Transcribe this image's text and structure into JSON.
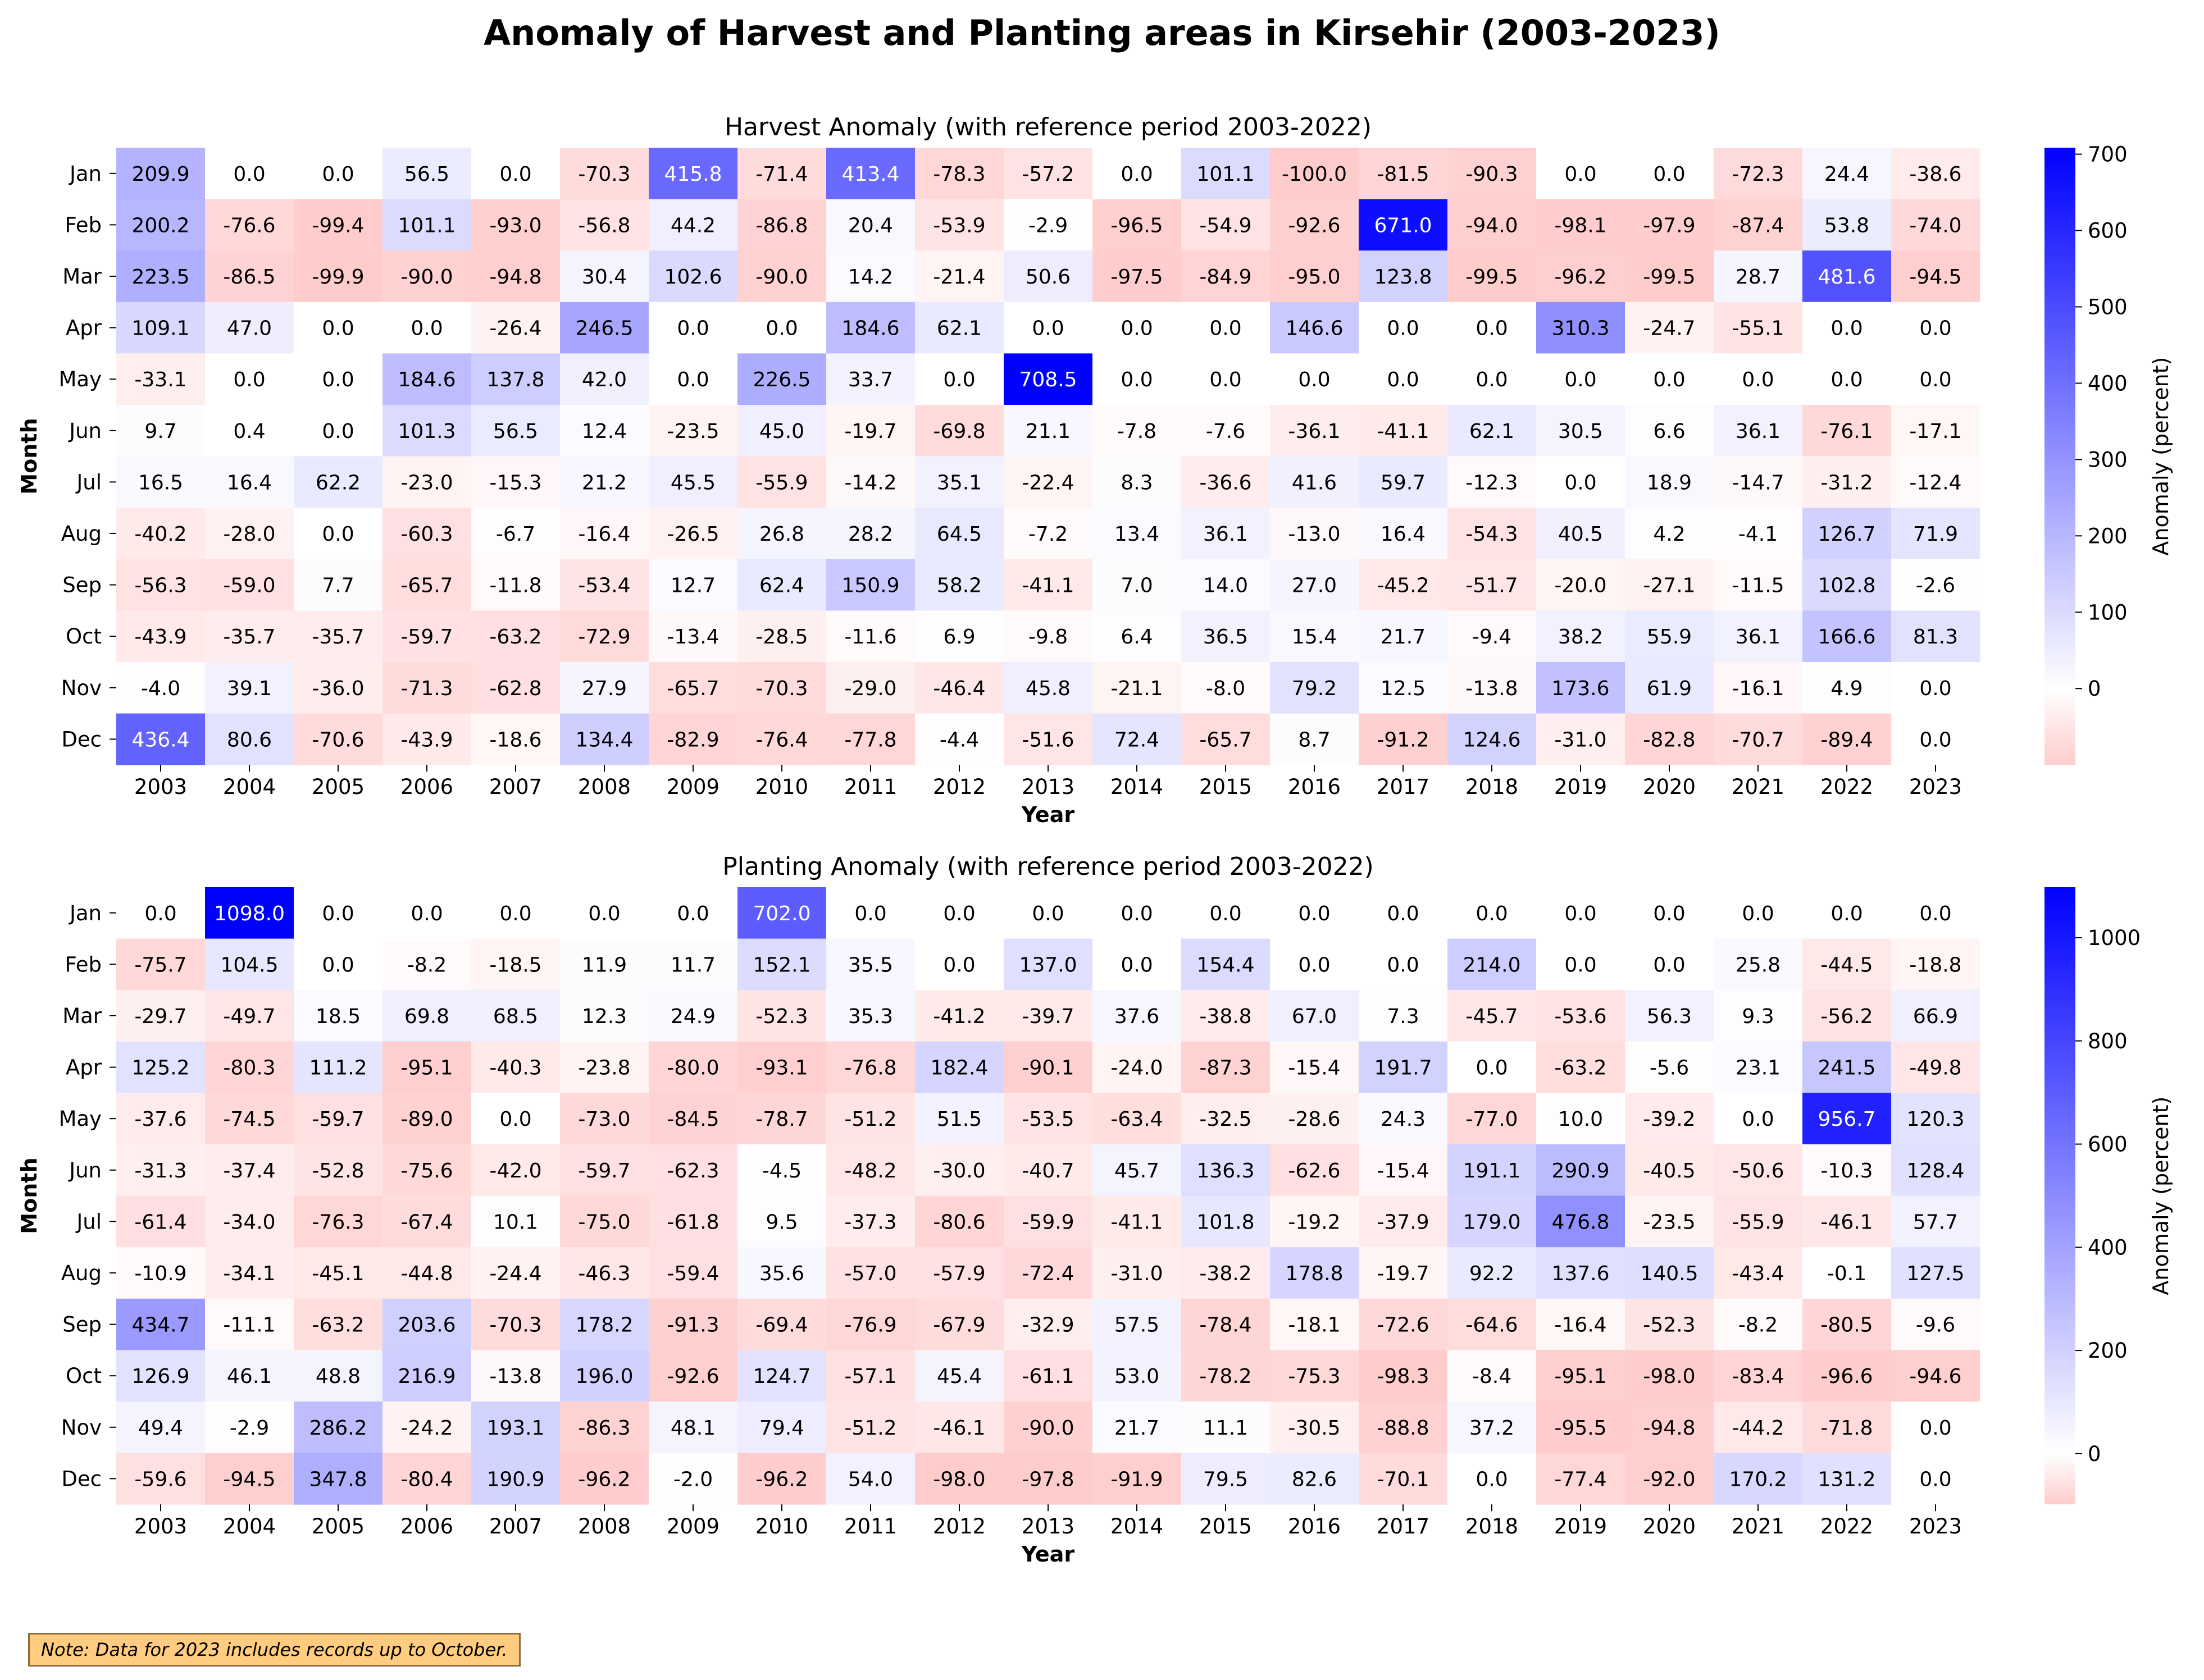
{
  "title": "Anomaly of Harvest and Planting areas in Kirsehir (2003-2023)",
  "note": "Note: Data for 2023 includes records up to October.",
  "colors": {
    "negative": "#ffcccc",
    "zero": "#ffffff",
    "positive": "#0000ff"
  },
  "chart_data": [
    {
      "type": "heatmap",
      "title": "Harvest Anomaly (with reference period 2003-2022)",
      "xlabel": "Year",
      "ylabel": "Month",
      "colorbar_label": "Anomaly (percent)",
      "colorbar_ticks": [
        0,
        100,
        200,
        300,
        400,
        500,
        600,
        700
      ],
      "vmin": -100,
      "vmax": 708.5,
      "x": [
        "2003",
        "2004",
        "2005",
        "2006",
        "2007",
        "2008",
        "2009",
        "2010",
        "2011",
        "2012",
        "2013",
        "2014",
        "2015",
        "2016",
        "2017",
        "2018",
        "2019",
        "2020",
        "2021",
        "2022",
        "2023"
      ],
      "y": [
        "Jan",
        "Feb",
        "Mar",
        "Apr",
        "May",
        "Jun",
        "Jul",
        "Aug",
        "Sep",
        "Oct",
        "Nov",
        "Dec"
      ],
      "values": [
        [
          209.9,
          0.0,
          0.0,
          56.5,
          0.0,
          -70.3,
          415.8,
          -71.4,
          413.4,
          -78.3,
          -57.2,
          0.0,
          101.1,
          -100.0,
          -81.5,
          -90.3,
          0.0,
          0.0,
          -72.3,
          24.4,
          -38.6
        ],
        [
          200.2,
          -76.6,
          -99.4,
          101.1,
          -93.0,
          -56.8,
          44.2,
          -86.8,
          20.4,
          -53.9,
          -2.9,
          -96.5,
          -54.9,
          -92.6,
          671.0,
          -94.0,
          -98.1,
          -97.9,
          -87.4,
          53.8,
          -74.0
        ],
        [
          223.5,
          -86.5,
          -99.9,
          -90.0,
          -94.8,
          30.4,
          102.6,
          -90.0,
          14.2,
          -21.4,
          50.6,
          -97.5,
          -84.9,
          -95.0,
          123.8,
          -99.5,
          -96.2,
          -99.5,
          28.7,
          481.6,
          -94.5
        ],
        [
          109.1,
          47.0,
          0.0,
          0.0,
          -26.4,
          246.5,
          0.0,
          0.0,
          184.6,
          62.1,
          0.0,
          0.0,
          0.0,
          146.6,
          0.0,
          0.0,
          310.3,
          -24.7,
          -55.1,
          0.0,
          0.0
        ],
        [
          -33.1,
          0.0,
          0.0,
          184.6,
          137.8,
          42.0,
          0.0,
          226.5,
          33.7,
          0.0,
          708.5,
          0.0,
          0.0,
          0.0,
          0.0,
          0.0,
          0.0,
          0.0,
          0.0,
          0.0,
          0.0
        ],
        [
          9.7,
          0.4,
          0.0,
          101.3,
          56.5,
          12.4,
          -23.5,
          45.0,
          -19.7,
          -69.8,
          21.1,
          -7.8,
          -7.6,
          -36.1,
          -41.1,
          62.1,
          30.5,
          6.6,
          36.1,
          -76.1,
          -17.1
        ],
        [
          16.5,
          16.4,
          62.2,
          -23.0,
          -15.3,
          21.2,
          45.5,
          -55.9,
          -14.2,
          35.1,
          -22.4,
          8.3,
          -36.6,
          41.6,
          59.7,
          -12.3,
          0.0,
          18.9,
          -14.7,
          -31.2,
          -12.4
        ],
        [
          -40.2,
          -28.0,
          0.0,
          -60.3,
          -6.7,
          -16.4,
          -26.5,
          26.8,
          28.2,
          64.5,
          -7.2,
          13.4,
          36.1,
          -13.0,
          16.4,
          -54.3,
          40.5,
          4.2,
          -4.1,
          126.7,
          71.9
        ],
        [
          -56.3,
          -59.0,
          7.7,
          -65.7,
          -11.8,
          -53.4,
          12.7,
          62.4,
          150.9,
          58.2,
          -41.1,
          7.0,
          14.0,
          27.0,
          -45.2,
          -51.7,
          -20.0,
          -27.1,
          -11.5,
          102.8,
          -2.6
        ],
        [
          -43.9,
          -35.7,
          -35.7,
          -59.7,
          -63.2,
          -72.9,
          -13.4,
          -28.5,
          -11.6,
          6.9,
          -9.8,
          6.4,
          36.5,
          15.4,
          21.7,
          -9.4,
          38.2,
          55.9,
          36.1,
          166.6,
          81.3
        ],
        [
          -4.0,
          39.1,
          -36.0,
          -71.3,
          -62.8,
          27.9,
          -65.7,
          -70.3,
          -29.0,
          -46.4,
          45.8,
          -21.1,
          -8.0,
          79.2,
          12.5,
          -13.8,
          173.6,
          61.9,
          -16.1,
          4.9,
          0.0
        ],
        [
          436.4,
          80.6,
          -70.6,
          -43.9,
          -18.6,
          134.4,
          -82.9,
          -76.4,
          -77.8,
          -4.4,
          -51.6,
          72.4,
          -65.7,
          8.7,
          -91.2,
          124.6,
          -31.0,
          -82.8,
          -70.7,
          -89.4,
          0.0
        ]
      ]
    },
    {
      "type": "heatmap",
      "title": "Planting Anomaly (with reference period 2003-2022)",
      "xlabel": "Year",
      "ylabel": "Month",
      "colorbar_label": "Anomaly (percent)",
      "colorbar_ticks": [
        0,
        200,
        400,
        600,
        800,
        1000
      ],
      "vmin": -98.3,
      "vmax": 1098.0,
      "x": [
        "2003",
        "2004",
        "2005",
        "2006",
        "2007",
        "2008",
        "2009",
        "2010",
        "2011",
        "2012",
        "2013",
        "2014",
        "2015",
        "2016",
        "2017",
        "2018",
        "2019",
        "2020",
        "2021",
        "2022",
        "2023"
      ],
      "y": [
        "Jan",
        "Feb",
        "Mar",
        "Apr",
        "May",
        "Jun",
        "Jul",
        "Aug",
        "Sep",
        "Oct",
        "Nov",
        "Dec"
      ],
      "values": [
        [
          0.0,
          1098.0,
          0.0,
          0.0,
          0.0,
          0.0,
          0.0,
          702.0,
          0.0,
          0.0,
          0.0,
          0.0,
          0.0,
          0.0,
          0.0,
          0.0,
          0.0,
          0.0,
          0.0,
          0.0,
          0.0
        ],
        [
          -75.7,
          104.5,
          0.0,
          -8.2,
          -18.5,
          11.9,
          11.7,
          152.1,
          35.5,
          0.0,
          137.0,
          0.0,
          154.4,
          0.0,
          0.0,
          214.0,
          0.0,
          0.0,
          25.8,
          -44.5,
          -18.8
        ],
        [
          -29.7,
          -49.7,
          18.5,
          69.8,
          68.5,
          12.3,
          24.9,
          -52.3,
          35.3,
          -41.2,
          -39.7,
          37.6,
          -38.8,
          67.0,
          7.3,
          -45.7,
          -53.6,
          56.3,
          9.3,
          -56.2,
          66.9
        ],
        [
          125.2,
          -80.3,
          111.2,
          -95.1,
          -40.3,
          -23.8,
          -80.0,
          -93.1,
          -76.8,
          182.4,
          -90.1,
          -24.0,
          -87.3,
          -15.4,
          191.7,
          0.0,
          -63.2,
          -5.6,
          23.1,
          241.5,
          -49.8
        ],
        [
          -37.6,
          -74.5,
          -59.7,
          -89.0,
          0.0,
          -73.0,
          -84.5,
          -78.7,
          -51.2,
          51.5,
          -53.5,
          -63.4,
          -32.5,
          -28.6,
          24.3,
          -77.0,
          10.0,
          -39.2,
          0.0,
          956.7,
          120.3
        ],
        [
          -31.3,
          -37.4,
          -52.8,
          -75.6,
          -42.0,
          -59.7,
          -62.3,
          -4.5,
          -48.2,
          -30.0,
          -40.7,
          45.7,
          136.3,
          -62.6,
          -15.4,
          191.1,
          290.9,
          -40.5,
          -50.6,
          -10.3,
          128.4
        ],
        [
          -61.4,
          -34.0,
          -76.3,
          -67.4,
          10.1,
          -75.0,
          -61.8,
          9.5,
          -37.3,
          -80.6,
          -59.9,
          -41.1,
          101.8,
          -19.2,
          -37.9,
          179.0,
          476.8,
          -23.5,
          -55.9,
          -46.1,
          57.7
        ],
        [
          -10.9,
          -34.1,
          -45.1,
          -44.8,
          -24.4,
          -46.3,
          -59.4,
          35.6,
          -57.0,
          -57.9,
          -72.4,
          -31.0,
          -38.2,
          178.8,
          -19.7,
          92.2,
          137.6,
          140.5,
          -43.4,
          -0.1,
          127.5
        ],
        [
          434.7,
          -11.1,
          -63.2,
          203.6,
          -70.3,
          178.2,
          -91.3,
          -69.4,
          -76.9,
          -67.9,
          -32.9,
          57.5,
          -78.4,
          -18.1,
          -72.6,
          -64.6,
          -16.4,
          -52.3,
          -8.2,
          -80.5,
          -9.6
        ],
        [
          126.9,
          46.1,
          48.8,
          216.9,
          -13.8,
          196.0,
          -92.6,
          124.7,
          -57.1,
          45.4,
          -61.1,
          53.0,
          -78.2,
          -75.3,
          -98.3,
          -8.4,
          -95.1,
          -98.0,
          -83.4,
          -96.6,
          -94.6
        ],
        [
          49.4,
          -2.9,
          286.2,
          -24.2,
          193.1,
          -86.3,
          48.1,
          79.4,
          -51.2,
          -46.1,
          -90.0,
          21.7,
          11.1,
          -30.5,
          -88.8,
          37.2,
          -95.5,
          -94.8,
          -44.2,
          -71.8,
          0.0
        ],
        [
          -59.6,
          -94.5,
          347.8,
          -80.4,
          190.9,
          -96.2,
          -2.0,
          -96.2,
          54.0,
          -98.0,
          -97.8,
          -91.9,
          79.5,
          82.6,
          -70.1,
          0.0,
          -77.4,
          -92.0,
          170.2,
          131.2,
          0.0
        ]
      ]
    }
  ]
}
